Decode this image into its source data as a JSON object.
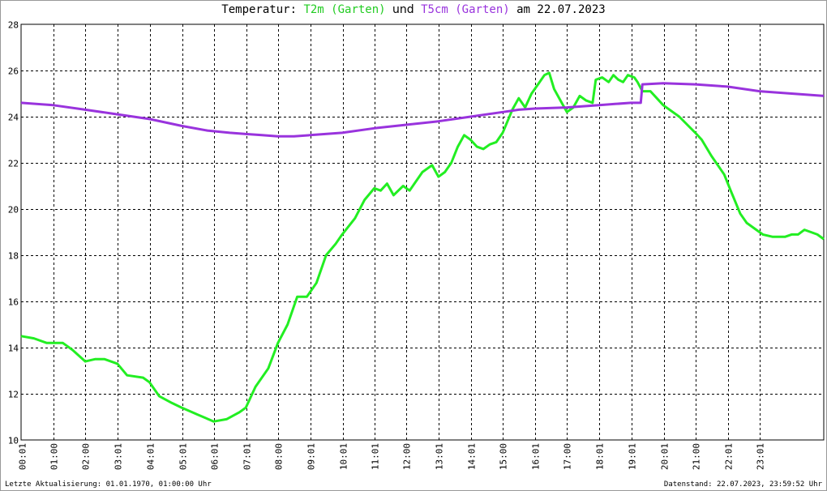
{
  "title": {
    "prefix": "Temperatur:",
    "series1": "T2m (Garten)",
    "connector": "und",
    "series2": "T5cm (Garten)",
    "suffix": "am 22.07.2023"
  },
  "footer": {
    "left": "Letzte Aktualisierung: 01.01.1970, 01:00:00 Uhr",
    "right": "Datenstand: 22.07.2023, 23:59:52 Uhr"
  },
  "chart_data": {
    "type": "line",
    "title": "Temperatur: T2m (Garten) und T5cm (Garten) am 22.07.2023",
    "xlabel": "",
    "ylabel": "",
    "grid": true,
    "xlim": [
      0,
      24
    ],
    "ylim": [
      10,
      28
    ],
    "yticks": [
      10,
      12,
      14,
      16,
      18,
      20,
      22,
      24,
      26,
      28
    ],
    "xticks": [
      {
        "x": 0.0167,
        "label": "00:01"
      },
      {
        "x": 1.0,
        "label": "01:00"
      },
      {
        "x": 2.0,
        "label": "02:00"
      },
      {
        "x": 3.0167,
        "label": "03:01"
      },
      {
        "x": 4.0167,
        "label": "04:01"
      },
      {
        "x": 5.0167,
        "label": "05:01"
      },
      {
        "x": 6.0167,
        "label": "06:01"
      },
      {
        "x": 7.0167,
        "label": "07:01"
      },
      {
        "x": 8.0,
        "label": "08:00"
      },
      {
        "x": 9.0167,
        "label": "09:01"
      },
      {
        "x": 10.0167,
        "label": "10:01"
      },
      {
        "x": 11.0167,
        "label": "11:01"
      },
      {
        "x": 12.0,
        "label": "12:00"
      },
      {
        "x": 13.0167,
        "label": "13:01"
      },
      {
        "x": 14.0167,
        "label": "14:01"
      },
      {
        "x": 15.0,
        "label": "15:00"
      },
      {
        "x": 16.0167,
        "label": "16:01"
      },
      {
        "x": 17.0,
        "label": "17:00"
      },
      {
        "x": 18.0167,
        "label": "18:01"
      },
      {
        "x": 19.0167,
        "label": "19:01"
      },
      {
        "x": 20.0167,
        "label": "20:01"
      },
      {
        "x": 21.0,
        "label": "21:00"
      },
      {
        "x": 22.0167,
        "label": "22:01"
      },
      {
        "x": 23.0167,
        "label": "23:01"
      }
    ],
    "series": [
      {
        "name": "T2m (Garten)",
        "color": "#22ee22",
        "points": [
          [
            0.0,
            14.5
          ],
          [
            0.4,
            14.4
          ],
          [
            0.8,
            14.2
          ],
          [
            1.3,
            14.2
          ],
          [
            1.6,
            13.9
          ],
          [
            2.0,
            13.4
          ],
          [
            2.3,
            13.5
          ],
          [
            2.6,
            13.5
          ],
          [
            3.0,
            13.3
          ],
          [
            3.3,
            12.8
          ],
          [
            3.8,
            12.7
          ],
          [
            4.0,
            12.5
          ],
          [
            4.3,
            11.9
          ],
          [
            4.7,
            11.6
          ],
          [
            5.0,
            11.4
          ],
          [
            5.5,
            11.1
          ],
          [
            6.0,
            10.8
          ],
          [
            6.4,
            10.9
          ],
          [
            6.8,
            11.2
          ],
          [
            7.0,
            11.4
          ],
          [
            7.3,
            12.3
          ],
          [
            7.7,
            13.1
          ],
          [
            8.0,
            14.2
          ],
          [
            8.3,
            15.0
          ],
          [
            8.6,
            16.2
          ],
          [
            8.9,
            16.2
          ],
          [
            9.2,
            16.8
          ],
          [
            9.5,
            18.0
          ],
          [
            9.8,
            18.5
          ],
          [
            10.0,
            18.9
          ],
          [
            10.4,
            19.6
          ],
          [
            10.7,
            20.4
          ],
          [
            11.0,
            20.9
          ],
          [
            11.2,
            20.8
          ],
          [
            11.4,
            21.1
          ],
          [
            11.6,
            20.6
          ],
          [
            11.9,
            21.0
          ],
          [
            12.1,
            20.8
          ],
          [
            12.5,
            21.6
          ],
          [
            12.8,
            21.9
          ],
          [
            13.0,
            21.4
          ],
          [
            13.2,
            21.6
          ],
          [
            13.4,
            22.0
          ],
          [
            13.6,
            22.7
          ],
          [
            13.8,
            23.2
          ],
          [
            14.0,
            23.0
          ],
          [
            14.2,
            22.7
          ],
          [
            14.4,
            22.6
          ],
          [
            14.6,
            22.8
          ],
          [
            14.8,
            22.9
          ],
          [
            15.0,
            23.3
          ],
          [
            15.3,
            24.3
          ],
          [
            15.5,
            24.8
          ],
          [
            15.7,
            24.4
          ],
          [
            15.9,
            25.0
          ],
          [
            16.1,
            25.4
          ],
          [
            16.3,
            25.8
          ],
          [
            16.45,
            25.9
          ],
          [
            16.6,
            25.2
          ],
          [
            16.8,
            24.7
          ],
          [
            17.0,
            24.2
          ],
          [
            17.2,
            24.4
          ],
          [
            17.4,
            24.9
          ],
          [
            17.6,
            24.7
          ],
          [
            17.8,
            24.6
          ],
          [
            17.9,
            25.6
          ],
          [
            18.1,
            25.7
          ],
          [
            18.3,
            25.5
          ],
          [
            18.45,
            25.8
          ],
          [
            18.6,
            25.6
          ],
          [
            18.75,
            25.5
          ],
          [
            18.9,
            25.8
          ],
          [
            19.1,
            25.7
          ],
          [
            19.2,
            25.5
          ],
          [
            19.35,
            25.1
          ],
          [
            19.6,
            25.1
          ],
          [
            19.8,
            24.8
          ],
          [
            20.0,
            24.5
          ],
          [
            20.5,
            24.0
          ],
          [
            21.0,
            23.3
          ],
          [
            21.2,
            23.0
          ],
          [
            21.5,
            22.3
          ],
          [
            21.9,
            21.5
          ],
          [
            22.1,
            20.8
          ],
          [
            22.4,
            19.8
          ],
          [
            22.6,
            19.4
          ],
          [
            22.9,
            19.1
          ],
          [
            23.1,
            18.9
          ],
          [
            23.4,
            18.8
          ],
          [
            23.8,
            18.8
          ],
          [
            24.0,
            18.9
          ],
          [
            24.2,
            18.9
          ],
          [
            24.4,
            19.1
          ],
          [
            24.6,
            19.0
          ],
          [
            24.8,
            18.9
          ],
          [
            25.0,
            18.7
          ]
        ]
      },
      {
        "name": "T5cm (Garten)",
        "color": "#9933dd",
        "points": [
          [
            0.0,
            24.6
          ],
          [
            1.0,
            24.5
          ],
          [
            2.0,
            24.3
          ],
          [
            3.0,
            24.1
          ],
          [
            4.0,
            23.9
          ],
          [
            5.0,
            23.6
          ],
          [
            5.8,
            23.4
          ],
          [
            6.5,
            23.3
          ],
          [
            7.0,
            23.25
          ],
          [
            7.5,
            23.2
          ],
          [
            8.0,
            23.15
          ],
          [
            8.5,
            23.15
          ],
          [
            9.0,
            23.2
          ],
          [
            10.0,
            23.3
          ],
          [
            11.0,
            23.5
          ],
          [
            12.0,
            23.65
          ],
          [
            13.0,
            23.8
          ],
          [
            14.0,
            24.0
          ],
          [
            15.0,
            24.2
          ],
          [
            15.5,
            24.3
          ],
          [
            16.0,
            24.35
          ],
          [
            17.0,
            24.4
          ],
          [
            18.0,
            24.5
          ],
          [
            18.5,
            24.55
          ],
          [
            19.0,
            24.6
          ],
          [
            19.3,
            24.6
          ],
          [
            19.35,
            25.4
          ],
          [
            20.0,
            25.45
          ],
          [
            21.0,
            25.4
          ],
          [
            22.0,
            25.3
          ],
          [
            23.0,
            25.1
          ],
          [
            24.0,
            25.0
          ],
          [
            25.0,
            24.9
          ]
        ]
      }
    ]
  }
}
